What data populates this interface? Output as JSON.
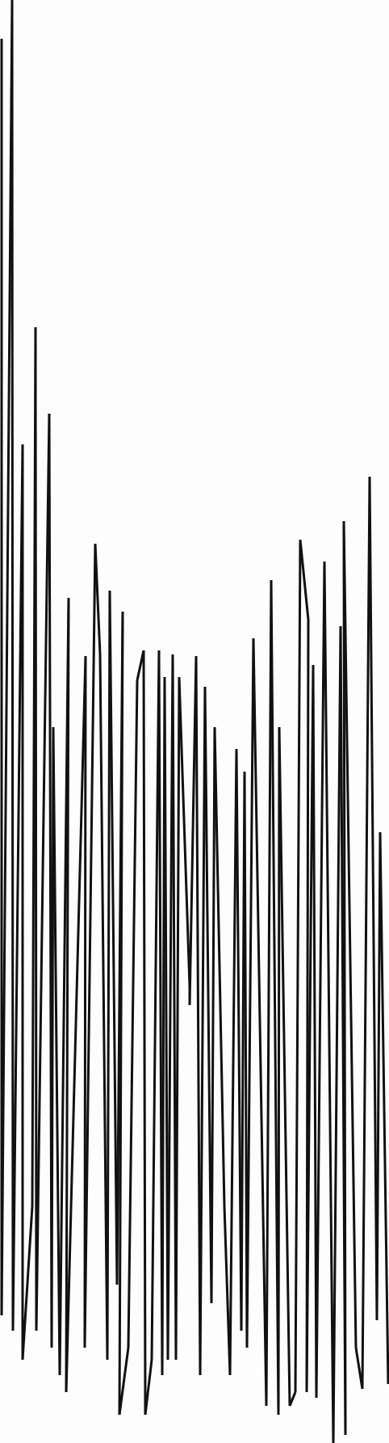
{
  "background": "#fdfdfd",
  "stroke_color": "#111111",
  "drawing": {
    "description_hidden": true
  }
}
